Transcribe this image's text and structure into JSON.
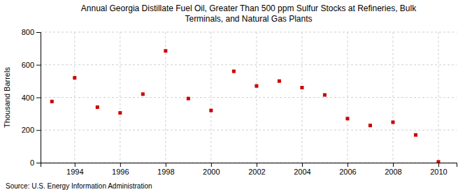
{
  "chart_data": {
    "type": "scatter",
    "title": "Annual Georgia Distillate Fuel Oil, Greater Than 500 ppm Sulfur Stocks at Refineries, Bulk\nTerminals, and Natural Gas Plants",
    "y_label": "Thousand Barrels",
    "annotation": "Source: U.S. Energy Information Administration",
    "x": [
      1993,
      1994,
      1995,
      1996,
      1997,
      1998,
      1999,
      2000,
      2001,
      2002,
      2003,
      2004,
      2005,
      2006,
      2007,
      2008,
      2009,
      2010
    ],
    "values": [
      375,
      520,
      340,
      305,
      420,
      685,
      393,
      320,
      560,
      470,
      500,
      460,
      415,
      270,
      228,
      248,
      170,
      5
    ],
    "color": "#cc0000",
    "marker": "square",
    "xlim": [
      1992.5,
      2010.8
    ],
    "xticks": [
      1994,
      1996,
      1998,
      2000,
      2002,
      2004,
      2006,
      2008,
      2010
    ],
    "ylim": [
      0,
      800
    ],
    "yticks": [
      0,
      200,
      400,
      600,
      800
    ],
    "grid": true
  }
}
